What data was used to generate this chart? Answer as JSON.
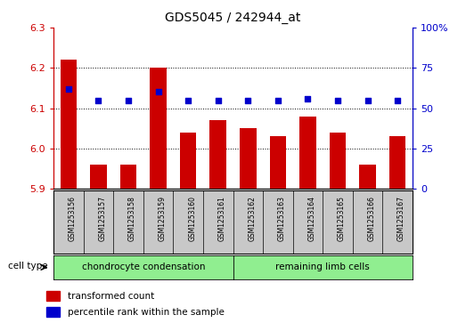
{
  "title": "GDS5045 / 242944_at",
  "samples": [
    "GSM1253156",
    "GSM1253157",
    "GSM1253158",
    "GSM1253159",
    "GSM1253160",
    "GSM1253161",
    "GSM1253162",
    "GSM1253163",
    "GSM1253164",
    "GSM1253165",
    "GSM1253166",
    "GSM1253167"
  ],
  "transformed_count": [
    6.22,
    5.96,
    5.96,
    6.2,
    6.04,
    6.07,
    6.05,
    6.03,
    6.08,
    6.04,
    5.96,
    6.03
  ],
  "percentile_rank": [
    62,
    55,
    55,
    60,
    55,
    55,
    55,
    55,
    56,
    55,
    55,
    55
  ],
  "ylim_left": [
    5.9,
    6.3
  ],
  "ylim_right": [
    0,
    100
  ],
  "yticks_left": [
    5.9,
    6.0,
    6.1,
    6.2,
    6.3
  ],
  "yticks_right": [
    0,
    25,
    50,
    75,
    100
  ],
  "ytick_labels_right": [
    "0",
    "25",
    "50",
    "75",
    "100%"
  ],
  "bar_color": "#cc0000",
  "dot_color": "#0000cc",
  "cell_type_groups": [
    {
      "label": "chondrocyte condensation",
      "start": 0,
      "end": 6,
      "color": "#90ee90"
    },
    {
      "label": "remaining limb cells",
      "start": 6,
      "end": 12,
      "color": "#90ee90"
    }
  ],
  "cell_type_label": "cell type",
  "legend_items": [
    {
      "label": "transformed count",
      "color": "#cc0000"
    },
    {
      "label": "percentile rank within the sample",
      "color": "#0000cc"
    }
  ],
  "title_color": "#000000",
  "left_tick_color": "#cc0000",
  "right_tick_color": "#0000cc",
  "label_box_color": "#c8c8c8",
  "bar_width": 0.55
}
